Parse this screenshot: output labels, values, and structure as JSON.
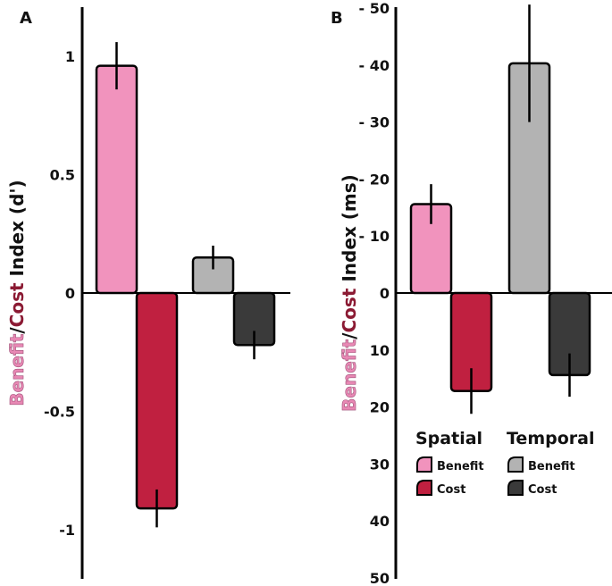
{
  "colors": {
    "spatial_benefit": "#f193bd",
    "spatial_cost": "#c02040",
    "temporal_benefit": "#b3b3b3",
    "temporal_cost": "#3a3a3a",
    "ylabel_benefit": "#e888b4",
    "ylabel_cost": "#8b1a33"
  },
  "chart_data": [
    {
      "type": "bar",
      "panel_label": "A",
      "ylabel_parts": [
        "Benefit",
        "/",
        "Cost",
        " Index (d')"
      ],
      "ylim": [
        -1.2,
        1.2
      ],
      "yticks": [
        1,
        0.5,
        0,
        -0.5,
        -1
      ],
      "ytick_labels": [
        "1",
        "0.5",
        "0",
        "-0.5",
        "-1"
      ],
      "categories": [
        "Spatial Benefit",
        "Spatial Cost",
        "Temporal Benefit",
        "Temporal Cost"
      ],
      "values": [
        0.96,
        -0.91,
        0.15,
        -0.22
      ],
      "errors": [
        0.1,
        0.08,
        0.05,
        0.06
      ]
    },
    {
      "type": "bar",
      "panel_label": "B",
      "ylabel_parts": [
        "Benefit",
        "/",
        "Cost",
        " Index (ms)"
      ],
      "ylim": [
        -50,
        50
      ],
      "yticks": [
        50,
        40,
        30,
        20,
        10,
        0,
        -10,
        -20,
        -30,
        -40,
        -50
      ],
      "ytick_labels": [
        "- 50",
        "- 40",
        "- 30",
        "- 20",
        "- 10",
        "0",
        "10",
        "20",
        "30",
        "40",
        "50"
      ],
      "categories": [
        "Spatial Benefit",
        "Spatial Cost",
        "Temporal Benefit",
        "Temporal Cost"
      ],
      "values": [
        15.6,
        -17.2,
        40.3,
        -14.4
      ],
      "errors": [
        3.5,
        4.0,
        10.3,
        3.8
      ],
      "legend": {
        "placement": "bottom-right",
        "groups": [
          {
            "title": "Spatial",
            "items": [
              "Benefit",
              "Cost"
            ]
          },
          {
            "title": "Temporal",
            "items": [
              "Benefit",
              "Cost"
            ]
          }
        ]
      }
    }
  ]
}
